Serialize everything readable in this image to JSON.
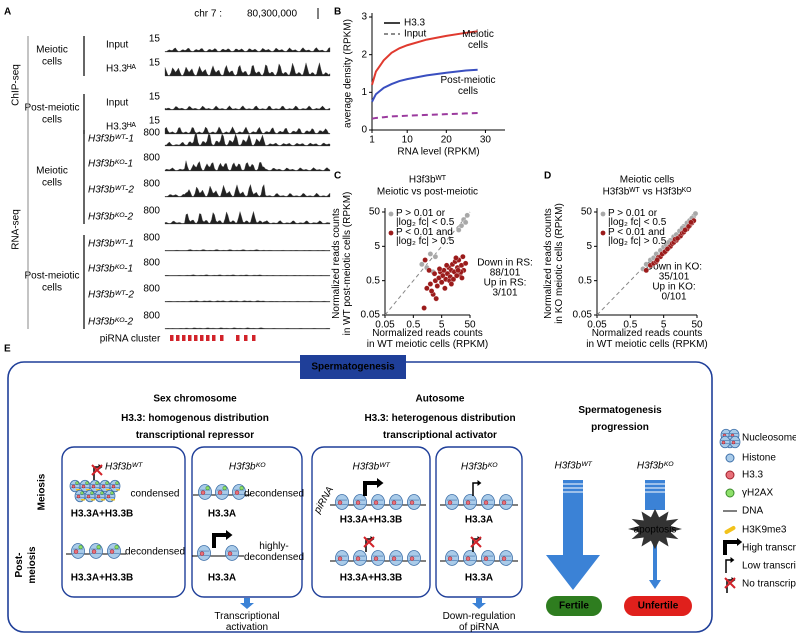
{
  "panel_labels": [
    "A",
    "B",
    "C",
    "D",
    "E"
  ],
  "panel_a": {
    "locus": "chr 7 :",
    "position": "80,300,000",
    "groups": [
      {
        "assay": "ChIP-seq",
        "cells": [
          {
            "name": [
              "Meiotic",
              "cells"
            ],
            "tracks": [
              {
                "label": "Input",
                "scale": 15
              },
              {
                "label": "H3.3ᴴᴬ",
                "scale": 15
              }
            ]
          },
          {
            "name": [
              "Post-meiotic",
              "cells"
            ],
            "tracks": [
              {
                "label": "Input",
                "scale": 15
              },
              {
                "label": "H3.3ᴴᴬ",
                "scale": 15
              }
            ]
          }
        ]
      },
      {
        "assay": "RNA-seq",
        "cells": [
          {
            "name": [
              "Meiotic",
              "cells"
            ],
            "tracks": [
              {
                "label": "H3f3bᵂᵀ-1",
                "scale": 800
              },
              {
                "label": "H3f3bᴷᴼ-1",
                "scale": 800
              },
              {
                "label": "H3f3bᵂᵀ-2",
                "scale": 800
              },
              {
                "label": "H3f3bᴷᴼ-2",
                "scale": 800
              }
            ]
          },
          {
            "name": [
              "Post-meiotic",
              "cells"
            ],
            "tracks": [
              {
                "label": "H3f3bᵂᵀ-1",
                "scale": 800
              },
              {
                "label": "H3f3bᴷᴼ-1",
                "scale": 800
              },
              {
                "label": "H3f3bᵂᵀ-2",
                "scale": 800
              },
              {
                "label": "H3f3bᴷᴼ-2",
                "scale": 800
              }
            ]
          }
        ]
      }
    ],
    "cluster_label": "piRNA cluster"
  },
  "chart_data": [
    {
      "type": "line",
      "xlabel": "RNA level (RPKM)",
      "ylabel": "average density (RPKM)",
      "legend_solid_label": "H3.3",
      "x": [
        1,
        2,
        4,
        6,
        8,
        10,
        15,
        20,
        25,
        28
      ],
      "series": [
        {
          "name": [
            "Meiotic",
            "cells"
          ],
          "color": "#e03a2f",
          "line_style": "solid",
          "values": [
            1.2,
            1.55,
            1.85,
            2.05,
            2.17,
            2.25,
            2.4,
            2.5,
            2.58,
            2.62
          ]
        },
        {
          "name": [
            "Post-meiotic",
            "cells"
          ],
          "color": "#3a4fc0",
          "line_style": "solid",
          "values": [
            0.75,
            0.95,
            1.12,
            1.22,
            1.3,
            1.35,
            1.45,
            1.52,
            1.58,
            1.6
          ]
        },
        {
          "name": "Input",
          "color": "#9b3a9e",
          "line_style": "dashed",
          "values": [
            0.3,
            0.32,
            0.34,
            0.36,
            0.37,
            0.38,
            0.4,
            0.42,
            0.44,
            0.45
          ]
        }
      ],
      "xlim": [
        1,
        35
      ],
      "xticks": [
        1,
        10,
        20,
        30
      ],
      "ylim": [
        0,
        3
      ],
      "yticks": [
        0,
        1,
        2,
        3
      ]
    },
    {
      "type": "scatter",
      "title": [
        "H3f3bᵂᵀ",
        "Meiotic vs post-meiotic"
      ],
      "xlabel": [
        "Normalized reads counts",
        "in WT meiotic cells (RPKM)"
      ],
      "ylabel": [
        "Normalized reads counts",
        "in WT post-meiotic cells (RPKM)"
      ],
      "annotation": [
        "Down in RS:",
        "88/101",
        "Up in RS:",
        "3/101"
      ],
      "log_scale": true,
      "diagonal": true,
      "xlim": [
        0.05,
        50
      ],
      "xticks": [
        0.05,
        0.5,
        5,
        50
      ],
      "ylim": [
        0.05,
        50
      ],
      "yticks": [
        0.05,
        0.5,
        5,
        50
      ],
      "series": [
        {
          "name": [
            "P > 0.01 or",
            "|log₂ fc| < 0.5"
          ],
          "color": "#a8a8a8",
          "x": [
            1,
            2,
            3,
            1.5,
            25,
            30,
            35,
            40,
            20,
            2.5
          ],
          "values": [
            1.5,
            3,
            2.5,
            1.2,
            20,
            30,
            25,
            40,
            15,
            0.9
          ]
        },
        {
          "name": [
            "P < 0.01 and",
            "|log₂ fc| > 0.5"
          ],
          "color": "#9b1b1b",
          "x": [
            1.2,
            1.5,
            2,
            2.5,
            3,
            3.5,
            4,
            4.5,
            5,
            5.5,
            6,
            7,
            8,
            9,
            10,
            11,
            12,
            14,
            15,
            18,
            20,
            22,
            25,
            28,
            30,
            1.8,
            2.2,
            3.2,
            6.5,
            9.5,
            13,
            17,
            24,
            35,
            1.3,
            2.8,
            4.2,
            7.5,
            11,
            16,
            19,
            26
          ],
          "values": [
            0.08,
            0.3,
            0.4,
            0.2,
            0.5,
            0.35,
            0.6,
            0.9,
            0.45,
            0.7,
            1.0,
            0.55,
            0.8,
            1.2,
            0.65,
            1.0,
            1.5,
            0.9,
            1.8,
            1.2,
            2.0,
            0.75,
            1.4,
            2.5,
            1.0,
            1.0,
            0.25,
            0.15,
            0.3,
            0.5,
            0.55,
            0.7,
            0.9,
            1.6,
            2.0,
            0.8,
            1.1,
            1.4,
            0.4,
            2.3,
            1.0,
            0.6
          ]
        }
      ]
    },
    {
      "type": "scatter",
      "title": [
        "Meiotic cells",
        "H3f3bᵂᵀ vs H3f3bᴷᴼ"
      ],
      "xlabel": [
        "Normalized reads counts",
        "in WT meiotic cells (RPKM)"
      ],
      "ylabel": [
        "Normalized reads counts",
        "in KO meiotic cells (RPKM)"
      ],
      "annotation": [
        "Down in KO:",
        "35/101",
        "Up in KO:",
        "0/101"
      ],
      "log_scale": true,
      "diagonal": true,
      "xlim": [
        0.05,
        50
      ],
      "xticks": [
        0.05,
        0.5,
        5,
        50
      ],
      "ylim": [
        0.05,
        50
      ],
      "yticks": [
        0.05,
        0.5,
        5,
        50
      ],
      "series": [
        {
          "name": [
            "P > 0.01 or",
            "|log₂ fc| < 0.5"
          ],
          "color": "#a8a8a8",
          "x": [
            1.2,
            1.5,
            2,
            2.5,
            3,
            4,
            5,
            6,
            8,
            10,
            12,
            15,
            20,
            25,
            30,
            40,
            45,
            35,
            18,
            7
          ],
          "values": [
            1.1,
            1.5,
            2,
            2.3,
            3,
            3.8,
            4.8,
            5.5,
            7.5,
            9.5,
            11,
            14,
            19,
            24,
            28,
            38,
            45,
            33,
            17,
            6.5
          ]
        },
        {
          "name": [
            "P < 0.01 and",
            "|log₂ fc| > 0.5"
          ],
          "color": "#9b1b1b",
          "x": [
            1.5,
            2,
            2.5,
            3,
            3.5,
            4,
            5,
            6,
            7,
            8,
            9,
            10,
            12,
            14,
            16,
            18,
            20,
            25,
            30,
            35,
            40,
            4.5,
            5.5,
            11,
            13,
            22,
            28,
            33,
            3.2,
            6.5
          ],
          "values": [
            1.0,
            1.4,
            1.6,
            1.8,
            2.4,
            2.5,
            3.2,
            3.8,
            4.5,
            5,
            6,
            6.5,
            7.5,
            9,
            10,
            12,
            13,
            16,
            20,
            24,
            28,
            3,
            3.5,
            8,
            8.5,
            15,
            19,
            25,
            2,
            4.2
          ]
        }
      ]
    }
  ],
  "panel_e": {
    "title": "Spermatogenesis",
    "stages": {
      "meiosis": "Meiosis",
      "post_meiosis": [
        "Post-",
        "meiosis"
      ]
    },
    "sections": [
      {
        "heading": "Sex chromosome",
        "subheading": [
          "H3.3: homogenous distribution",
          "transcriptional repressor"
        ],
        "boxes": [
          {
            "genotype": "H3f3bᵂᵀ",
            "meiosis_state": "condensed",
            "post_state": "decondensed",
            "meiosis_histone": "H3.3A+H3.3B",
            "post_histone": "H3.3A+H3.3B"
          },
          {
            "genotype": "H3f3bᴷᴼ",
            "meiosis_state": "decondensed",
            "post_state": [
              "highly-",
              "decondensed"
            ],
            "meiosis_histone": "H3.3A",
            "post_histone": "H3.3A"
          }
        ],
        "outcome": [
          "Transcriptional",
          "activation"
        ]
      },
      {
        "heading": "Autosome",
        "subheading": [
          "H3.3: heterogenous distribution",
          "transcriptional activator"
        ],
        "boxes": [
          {
            "genotype": "H3f3bᵂᵀ",
            "locus": "piRNA",
            "meiosis_histone": "H3.3A+H3.3B",
            "post_histone": "H3.3A+H3.3B"
          },
          {
            "genotype": "H3f3bᴷᴼ",
            "meiosis_histone": "H3.3A",
            "post_histone": "H3.3A"
          }
        ],
        "outcome": [
          "Down-regulation",
          "of piRNA"
        ]
      }
    ],
    "progression": {
      "heading": [
        "Spermatogenesis",
        "progression"
      ],
      "genotypes": [
        "H3f3bᵂᵀ",
        "H3f3bᴷᴼ"
      ],
      "event": "apoptosis",
      "outcomes": [
        "Fertile",
        "Unfertile"
      ]
    },
    "legend": [
      "Nucleosome",
      "Histone",
      "H3.3",
      "γH2AX",
      "DNA",
      "H3K9me3",
      "High transcription",
      "Low transcription",
      "No transcription"
    ]
  }
}
